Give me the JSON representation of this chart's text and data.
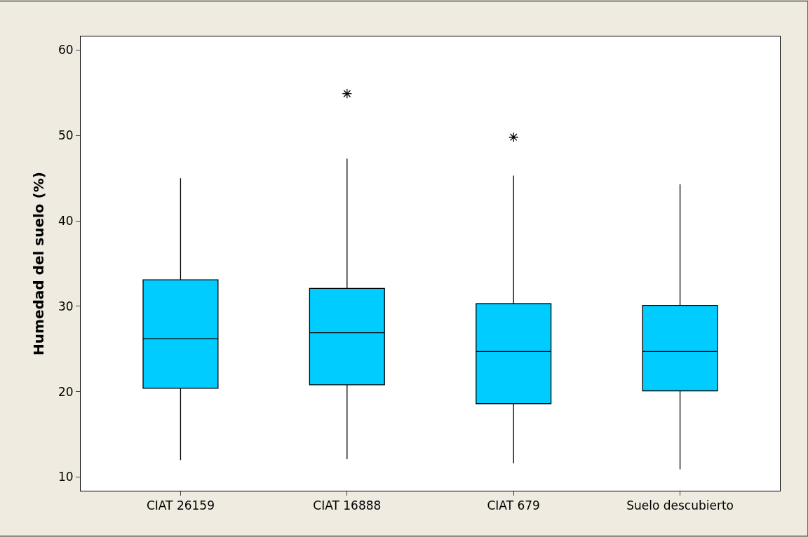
{
  "chart_data": {
    "type": "box",
    "ylabel": "Humedad del suelo (%)",
    "categories": [
      "CIAT 26159",
      "CIAT 16888",
      "CIAT 679",
      "Suelo descubierto"
    ],
    "boxes": [
      {
        "low": 12.0,
        "q1": 20.4,
        "median": 26.2,
        "q3": 33.1,
        "high": 45.0
      },
      {
        "low": 12.1,
        "q1": 20.8,
        "median": 26.9,
        "q3": 32.1,
        "high": 47.3,
        "outliers": [
          54.9
        ]
      },
      {
        "low": 11.6,
        "q1": 18.6,
        "median": 24.7,
        "q3": 30.3,
        "high": 45.3,
        "outliers": [
          49.8
        ]
      },
      {
        "low": 10.9,
        "q1": 20.1,
        "median": 24.7,
        "q3": 30.1,
        "high": 44.3
      }
    ],
    "color": "#00ccff",
    "ylim": [
      8.4,
      61.6
    ],
    "yticks": [
      10,
      20,
      30,
      40,
      50,
      60
    ]
  }
}
